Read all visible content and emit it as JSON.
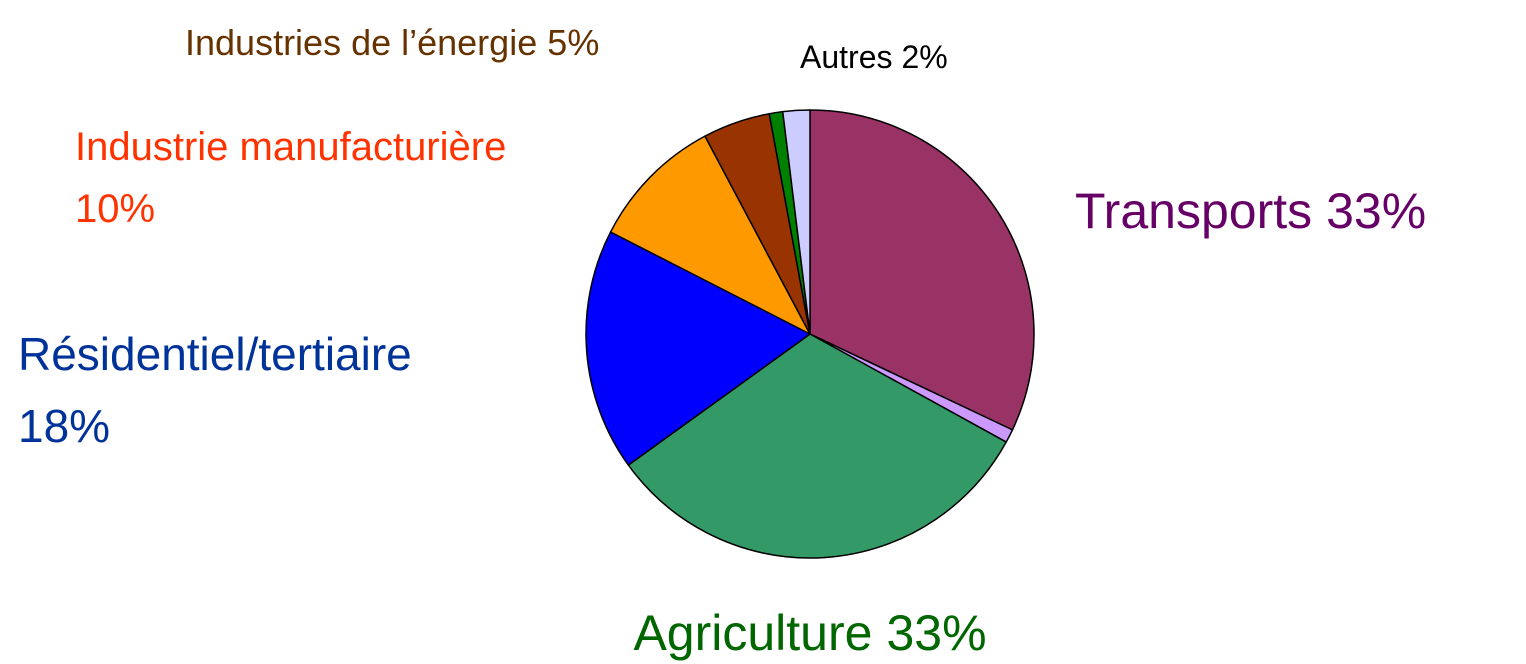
{
  "chart_data": {
    "type": "pie",
    "categories": [
      "Transports",
      null,
      "Agriculture",
      "Résidentiel/tertiaire",
      "Industrie manufacturière",
      "Industries de l’énergie",
      null,
      "Autres"
    ],
    "values": [
      33,
      1,
      33,
      18,
      10,
      5,
      1,
      2
    ],
    "value_labels": [
      "33%",
      null,
      "33%",
      "18%",
      "10%",
      "5%",
      null,
      "2%"
    ],
    "colors": [
      "#993366",
      "#CC99FF",
      "#339966",
      "#0000FF",
      "#FF9900",
      "#993300",
      "#008000",
      "#CCCCFF"
    ],
    "label_colors": [
      "#660066",
      null,
      "#006600",
      "#003399",
      "#FF3300",
      "#663300",
      null,
      "#000000"
    ]
  }
}
